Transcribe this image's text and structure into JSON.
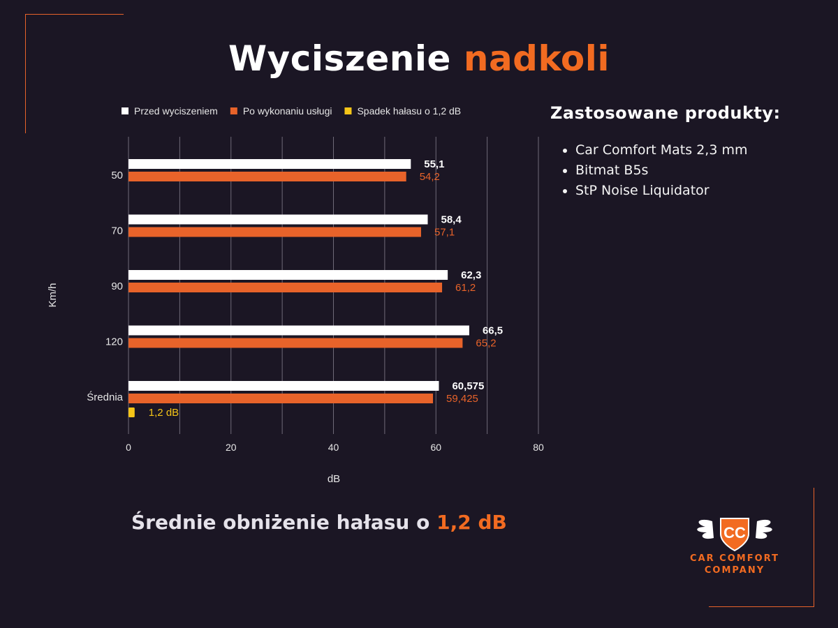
{
  "title": {
    "part1": "Wyciszenie",
    "part2": "nadkoli"
  },
  "products": {
    "heading": "Zastosowane produkty:",
    "items": [
      "Car Comfort Mats 2,3 mm",
      "Bitmat B5s",
      "StP Noise Liquidator"
    ]
  },
  "summary": {
    "text": "Średnie obniżenie hałasu o",
    "value": "1,2 dB"
  },
  "logo": {
    "line1": "CAR COMFORT",
    "line2": "COMPANY",
    "monogram": "CC"
  },
  "colors": {
    "background": "#1b1624",
    "accent": "#f26b21",
    "before": "#ffffff",
    "after": "#e8632a",
    "drop": "#f5c518"
  },
  "chart_data": {
    "type": "bar",
    "orientation": "horizontal",
    "categories": [
      "50",
      "70",
      "90",
      "120",
      "Średnia"
    ],
    "series": [
      {
        "name": "Przed wyciszeniem",
        "color": "#ffffff",
        "values": [
          55.1,
          58.4,
          62.3,
          66.5,
          60.575
        ],
        "labels": [
          "55,1",
          "58,4",
          "62,3",
          "66,5",
          "60,575"
        ]
      },
      {
        "name": "Po wykonaniu usługi",
        "color": "#e8632a",
        "values": [
          54.2,
          57.1,
          61.2,
          65.2,
          59.425
        ],
        "labels": [
          "54,2",
          "57,1",
          "61,2",
          "65,2",
          "59,425"
        ]
      },
      {
        "name": "Spadek hałasu o 1,2 dB",
        "color": "#f5c518",
        "values": [
          null,
          null,
          null,
          null,
          1.2
        ],
        "labels": [
          "",
          "",
          "",
          "",
          "1,2 dB"
        ]
      }
    ],
    "xlabel": "dB",
    "ylabel": "Km/h",
    "xlim": [
      0,
      80
    ],
    "xticks": [
      0,
      20,
      40,
      60,
      80
    ],
    "grid": true,
    "legend_position": "top"
  }
}
